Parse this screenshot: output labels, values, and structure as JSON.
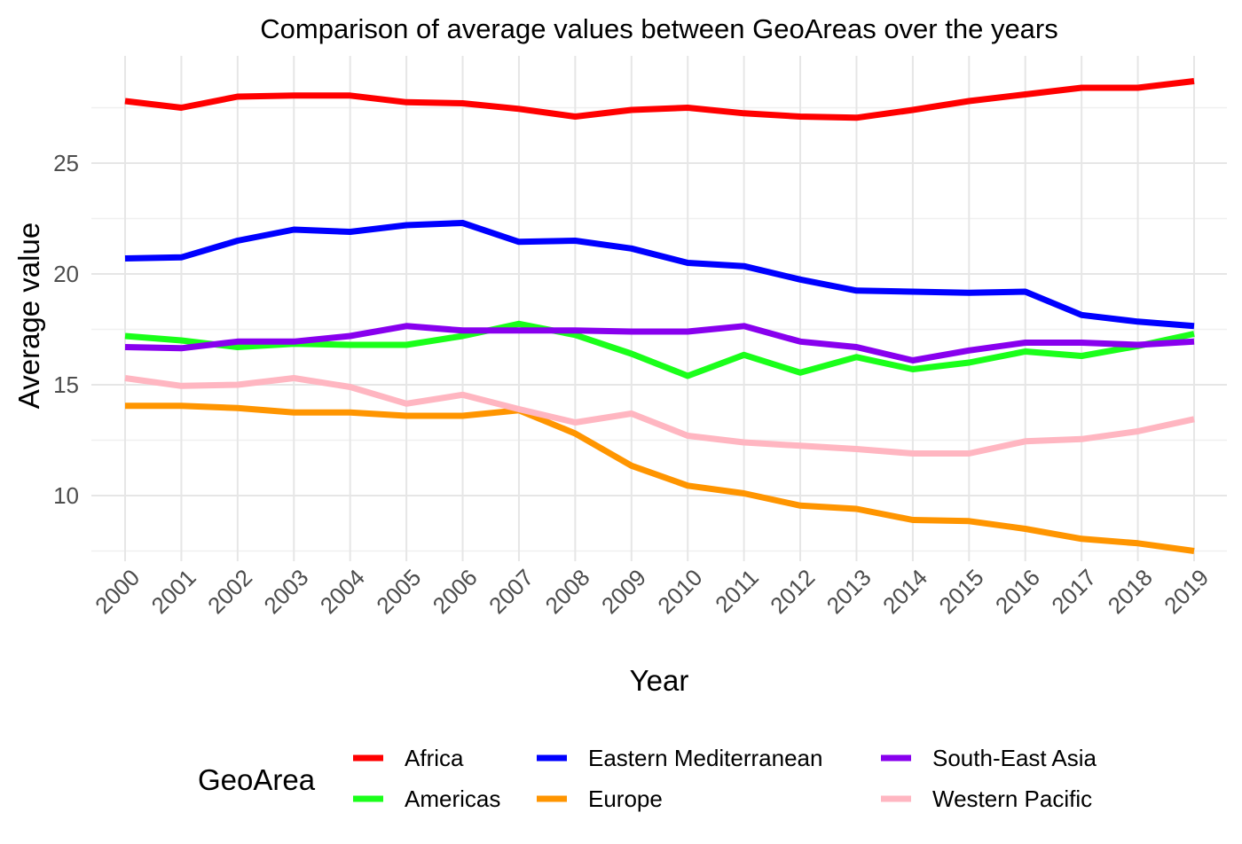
{
  "chart_data": {
    "type": "line",
    "title": "Comparison of average values between GeoAreas over the years",
    "xlabel": "Year",
    "ylabel": "Average value",
    "x": [
      "2000",
      "2001",
      "2002",
      "2003",
      "2004",
      "2005",
      "2006",
      "2007",
      "2008",
      "2009",
      "2010",
      "2011",
      "2012",
      "2013",
      "2014",
      "2015",
      "2016",
      "2017",
      "2018",
      "2019"
    ],
    "ylim": [
      7.5,
      29
    ],
    "yticks": [
      10,
      15,
      20,
      25
    ],
    "grid": true,
    "legend": {
      "title": "GeoArea",
      "position": "bottom",
      "columns": 3
    },
    "series": [
      {
        "name": "Africa",
        "color": "#ff0000",
        "values": [
          27.8,
          27.5,
          28.0,
          28.05,
          28.05,
          27.75,
          27.7,
          27.45,
          27.1,
          27.4,
          27.5,
          27.25,
          27.1,
          27.05,
          27.4,
          27.8,
          28.1,
          28.4,
          28.4,
          28.7
        ]
      },
      {
        "name": "Americas",
        "color": "#1aff1a",
        "values": [
          17.2,
          17.0,
          16.7,
          16.85,
          16.8,
          16.8,
          17.2,
          17.75,
          17.25,
          16.4,
          15.4,
          16.35,
          15.55,
          16.25,
          15.7,
          16.0,
          16.5,
          16.3,
          16.75,
          17.3
        ]
      },
      {
        "name": "Eastern Mediterranean",
        "color": "#0000ff",
        "values": [
          20.7,
          20.75,
          21.5,
          22.0,
          21.9,
          22.2,
          22.3,
          21.45,
          21.5,
          21.15,
          20.5,
          20.35,
          19.75,
          19.25,
          19.2,
          19.15,
          19.2,
          18.15,
          17.85,
          17.65
        ]
      },
      {
        "name": "Europe",
        "color": "#ff9500",
        "values": [
          14.05,
          14.05,
          13.95,
          13.75,
          13.75,
          13.6,
          13.6,
          13.85,
          12.8,
          11.35,
          10.45,
          10.1,
          9.55,
          9.4,
          8.9,
          8.85,
          8.5,
          8.05,
          7.85,
          7.5
        ]
      },
      {
        "name": "South-East Asia",
        "color": "#8800ee",
        "values": [
          16.7,
          16.65,
          16.95,
          16.95,
          17.2,
          17.65,
          17.45,
          17.45,
          17.45,
          17.4,
          17.4,
          17.65,
          16.95,
          16.7,
          16.1,
          16.55,
          16.9,
          16.9,
          16.8,
          16.95
        ]
      },
      {
        "name": "Western Pacific",
        "color": "#ffb6c1",
        "values": [
          15.3,
          14.95,
          15.0,
          15.3,
          14.9,
          14.15,
          14.55,
          13.9,
          13.3,
          13.7,
          12.7,
          12.4,
          12.25,
          12.1,
          11.9,
          11.9,
          12.45,
          12.55,
          12.9,
          13.45
        ]
      }
    ]
  }
}
